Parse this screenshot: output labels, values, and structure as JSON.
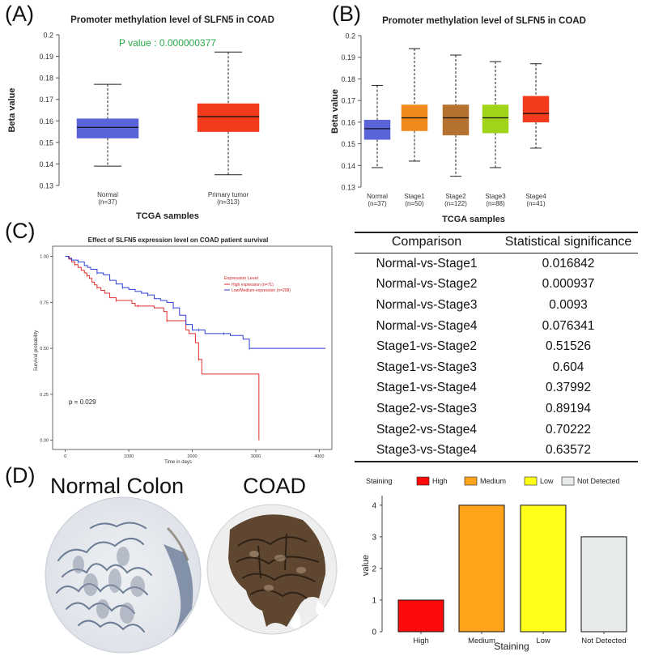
{
  "panels": {
    "a": "(A)",
    "b": "(B)",
    "c": "(C)",
    "d": "(D)"
  },
  "colors": {
    "normal": "#5a63d8",
    "tumor": "#f23b1c",
    "stage1": "#f08a1c",
    "stage2": "#b5712f",
    "stage3": "#9fd41a",
    "stage4": "#f23b1c",
    "high_km": "#e32d2d",
    "low_km": "#2f3fd6",
    "pvalue": "#2aa84a"
  },
  "chart_data": [
    {
      "id": "A",
      "type": "box",
      "title": "Promoter methylation level of SLFN5 in COAD",
      "annotation": "P value : 0.000000377",
      "xlabel": "TCGA samples",
      "ylabel": "Beta value",
      "ylim": [
        0.13,
        0.2
      ],
      "yticks": [
        "0.13",
        "0.14",
        "0.15",
        "0.16",
        "0.17",
        "0.18",
        "0.19",
        "0.2"
      ],
      "groups": [
        {
          "name": "Normal",
          "n": "(n=37)",
          "min": 0.139,
          "q1": 0.152,
          "median": 0.157,
          "q3": 0.161,
          "max": 0.177,
          "color": "#5a63d8"
        },
        {
          "name": "Primary tumor",
          "n": "(n=313)",
          "min": 0.135,
          "q1": 0.155,
          "median": 0.162,
          "q3": 0.168,
          "max": 0.192,
          "color": "#f23b1c"
        }
      ]
    },
    {
      "id": "B",
      "type": "box",
      "title": "Promoter methylation level of SLFN5 in COAD",
      "xlabel": "TCGA samples",
      "ylabel": "Beta value",
      "ylim": [
        0.13,
        0.2
      ],
      "yticks": [
        "0.13",
        "0.14",
        "0.15",
        "0.16",
        "0.17",
        "0.18",
        "0.19",
        "0.2"
      ],
      "groups": [
        {
          "name": "Normal",
          "n": "(n=37)",
          "min": 0.139,
          "q1": 0.152,
          "median": 0.157,
          "q3": 0.161,
          "max": 0.177,
          "color": "#5a63d8"
        },
        {
          "name": "Stage1",
          "n": "(n=50)",
          "min": 0.142,
          "q1": 0.156,
          "median": 0.162,
          "q3": 0.168,
          "max": 0.194,
          "color": "#f08a1c"
        },
        {
          "name": "Stage2",
          "n": "(n=122)",
          "min": 0.135,
          "q1": 0.154,
          "median": 0.162,
          "q3": 0.168,
          "max": 0.191,
          "color": "#b5712f"
        },
        {
          "name": "Stage3",
          "n": "(n=88)",
          "min": 0.139,
          "q1": 0.155,
          "median": 0.162,
          "q3": 0.168,
          "max": 0.188,
          "color": "#9fd41a"
        },
        {
          "name": "Stage4",
          "n": "(n=41)",
          "min": 0.148,
          "q1": 0.16,
          "median": 0.164,
          "q3": 0.172,
          "max": 0.187,
          "color": "#f23b1c"
        }
      ]
    },
    {
      "id": "C",
      "type": "line",
      "title": "Effect of SLFN5 expression level on COAD patient survival",
      "xlabel": "Time in days",
      "ylabel": "Survival probability",
      "xlim": [
        -200,
        4200
      ],
      "ylim": [
        -0.05,
        1.02
      ],
      "xticks": [
        "0",
        "1000",
        "2000",
        "3000",
        "4000"
      ],
      "yticks": [
        "0.00",
        "0.25",
        "0.50",
        "0.75",
        "1.00"
      ],
      "legend_title": "Expression Level",
      "annotation": "p = 0.029",
      "series": [
        {
          "name": "High expression (n=71)",
          "color": "#e32d2d",
          "x": [
            0,
            60,
            100,
            150,
            200,
            250,
            300,
            340,
            380,
            420,
            460,
            500,
            560,
            620,
            700,
            800,
            1000,
            1050,
            1100,
            1150,
            1300,
            1400,
            1550,
            1600,
            1900,
            1950,
            2050,
            2100,
            2150,
            3050,
            3050
          ],
          "y": [
            1.0,
            0.985,
            0.97,
            0.955,
            0.94,
            0.925,
            0.91,
            0.895,
            0.88,
            0.86,
            0.845,
            0.83,
            0.815,
            0.8,
            0.775,
            0.76,
            0.76,
            0.745,
            0.73,
            0.73,
            0.73,
            0.72,
            0.7,
            0.65,
            0.6,
            0.58,
            0.53,
            0.44,
            0.36,
            0.36,
            0.0
          ]
        },
        {
          "name": "Low/Medium-expression (n=208)",
          "color": "#2f3fd6",
          "x": [
            0,
            50,
            100,
            200,
            300,
            350,
            400,
            500,
            600,
            700,
            800,
            900,
            1000,
            1100,
            1200,
            1300,
            1400,
            1500,
            1600,
            1700,
            1800,
            1900,
            2000,
            2100,
            2200,
            2300,
            2400,
            2500,
            2600,
            2700,
            2800,
            2900,
            3000,
            3500,
            4100
          ],
          "y": [
            1.0,
            0.99,
            0.98,
            0.97,
            0.95,
            0.94,
            0.93,
            0.91,
            0.9,
            0.87,
            0.85,
            0.83,
            0.82,
            0.81,
            0.8,
            0.79,
            0.77,
            0.76,
            0.75,
            0.72,
            0.68,
            0.63,
            0.6,
            0.6,
            0.58,
            0.58,
            0.58,
            0.58,
            0.57,
            0.57,
            0.55,
            0.5,
            0.5,
            0.5,
            0.5
          ]
        }
      ]
    },
    {
      "id": "D",
      "type": "bar",
      "xlabel": "Staining",
      "ylabel": "value",
      "ylim": [
        0,
        4.2
      ],
      "yticks": [
        "0",
        "1",
        "2",
        "3",
        "4"
      ],
      "legend_title": "Staining",
      "categories": [
        "High",
        "Medium",
        "Low",
        "Not Detected"
      ],
      "values": [
        1,
        4,
        4,
        3
      ],
      "colors": [
        "#ff0a0a",
        "#ffa31a",
        "#ffff1a",
        "#e8ece8"
      ]
    }
  ],
  "table": {
    "headers": [
      "Comparison",
      "Statistical significance"
    ],
    "rows": [
      [
        "Normal-vs-Stage1",
        "0.016842"
      ],
      [
        "Normal-vs-Stage2",
        "0.000937"
      ],
      [
        "Normal-vs-Stage3",
        "0.0093"
      ],
      [
        "Normal-vs-Stage4",
        "0.076341"
      ],
      [
        "Stage1-vs-Stage2",
        "0.51526"
      ],
      [
        "Stage1-vs-Stage3",
        "0.604"
      ],
      [
        "Stage1-vs-Stage4",
        "0.37992"
      ],
      [
        "Stage2-vs-Stage3",
        "0.89194"
      ],
      [
        "Stage2-vs-Stage4",
        "0.70222"
      ],
      [
        "Stage3-vs-Stage4",
        "0.63572"
      ]
    ]
  },
  "tissue": {
    "normal_title": "Normal Colon",
    "tumor_title": "COAD"
  }
}
